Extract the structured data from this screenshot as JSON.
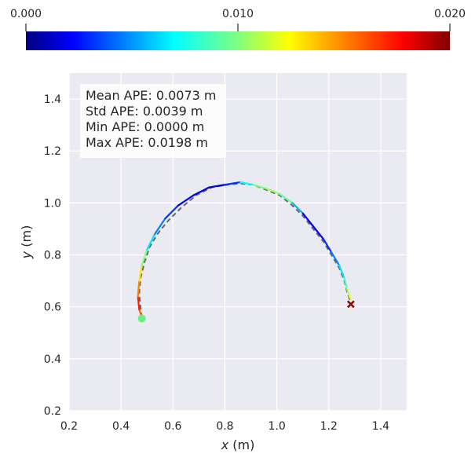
{
  "colorbar": {
    "ticks": [
      "0.000",
      "0.010",
      "0.020"
    ],
    "tick_values": [
      0.0,
      0.01,
      0.02
    ],
    "range": [
      0.0,
      0.02
    ],
    "colormap": "jet"
  },
  "stats": {
    "lines": [
      "Mean APE: 0.0073 m",
      "Std APE: 0.0039 m",
      "Min APE: 0.0000 m",
      "Max APE: 0.0198 m"
    ]
  },
  "chart_data": {
    "type": "line",
    "xlabel_var": "x",
    "xlabel_unit": " (m)",
    "ylabel_var": "y",
    "ylabel_unit": " (m)",
    "xlim": [
      0.2,
      1.5
    ],
    "ylim": [
      0.2,
      1.5
    ],
    "xticks": [
      0.2,
      0.4,
      0.6,
      0.8,
      1.0,
      1.2,
      1.4
    ],
    "yticks": [
      0.2,
      0.4,
      0.6,
      0.8,
      1.0,
      1.2,
      1.4
    ],
    "xtick_labels": [
      "0.2",
      "0.4",
      "0.6",
      "0.8",
      "1.0",
      "1.2",
      "1.4"
    ],
    "ytick_labels": [
      "0.2",
      "0.4",
      "0.6",
      "0.8",
      "1.0",
      "1.2",
      "1.4"
    ],
    "grid": true,
    "background": "#eaeaf2",
    "reference": {
      "style": "dashed",
      "color": "#666666",
      "x": [
        0.48,
        0.475,
        0.47,
        0.475,
        0.49,
        0.51,
        0.54,
        0.58,
        0.63,
        0.69,
        0.75,
        0.81,
        0.86,
        0.91,
        0.96,
        1.01,
        1.06,
        1.1,
        1.14,
        1.18,
        1.21,
        1.24,
        1.26,
        1.27,
        1.28,
        1.28
      ],
      "y": [
        0.56,
        0.6,
        0.65,
        0.71,
        0.77,
        0.83,
        0.88,
        0.93,
        0.98,
        1.03,
        1.06,
        1.07,
        1.075,
        1.07,
        1.05,
        1.03,
        0.99,
        0.95,
        0.9,
        0.85,
        0.8,
        0.75,
        0.7,
        0.66,
        0.63,
        0.62
      ]
    },
    "estimate": {
      "style": "solid",
      "colored_by": "APE",
      "x": [
        0.48,
        0.47,
        0.465,
        0.47,
        0.48,
        0.5,
        0.53,
        0.57,
        0.62,
        0.68,
        0.74,
        0.8,
        0.86,
        0.91,
        0.96,
        1.01,
        1.06,
        1.1,
        1.14,
        1.18,
        1.21,
        1.24,
        1.26,
        1.27,
        1.28,
        1.285
      ],
      "y": [
        0.56,
        0.59,
        0.64,
        0.7,
        0.76,
        0.82,
        0.88,
        0.94,
        0.99,
        1.03,
        1.06,
        1.07,
        1.08,
        1.07,
        1.055,
        1.035,
        1.0,
        0.96,
        0.91,
        0.86,
        0.81,
        0.76,
        0.71,
        0.67,
        0.64,
        0.63
      ],
      "ape": [
        0.013,
        0.018,
        0.016,
        0.014,
        0.012,
        0.008,
        0.006,
        0.004,
        0.003,
        0.002,
        0.002,
        0.001,
        0.006,
        0.009,
        0.011,
        0.01,
        0.009,
        0.003,
        0.002,
        0.003,
        0.004,
        0.006,
        0.008,
        0.01,
        0.012,
        0.013
      ]
    },
    "start_marker": {
      "x": 0.48,
      "y": 0.555,
      "shape": "circle",
      "color": "#66ee88"
    },
    "end_marker": {
      "x": 1.285,
      "y": 0.61,
      "shape": "x",
      "color": "#8b0000"
    }
  }
}
